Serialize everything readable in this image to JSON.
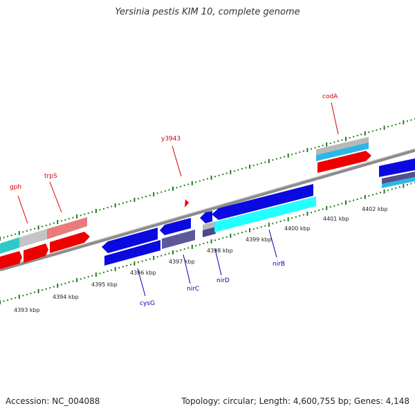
{
  "title": "Yersinia pestis KIM 10, complete genome",
  "accession": "Accession: NC_004088",
  "summary": "Topology: circular; Length: 4,600,755 bp; Genes: 4,148",
  "colors": {
    "forward_label": "#d10000",
    "reverse_label": "#0000b0",
    "tick": "#1f7a1f",
    "backbone": "#8c8c8c"
  },
  "kbp_labels": [
    "4393 kbp",
    "4394 kbp",
    "4395 kbp",
    "4396 kbp",
    "4397 kbp",
    "4398 kbp",
    "4399 kbp",
    "4400 kbp",
    "4401 kbp",
    "4402 kbp"
  ],
  "forward_genes": [
    "gph",
    "trpS",
    "y3943",
    "codA"
  ],
  "reverse_genes": [
    "cysG",
    "nirC",
    "nirD",
    "nirB"
  ]
}
